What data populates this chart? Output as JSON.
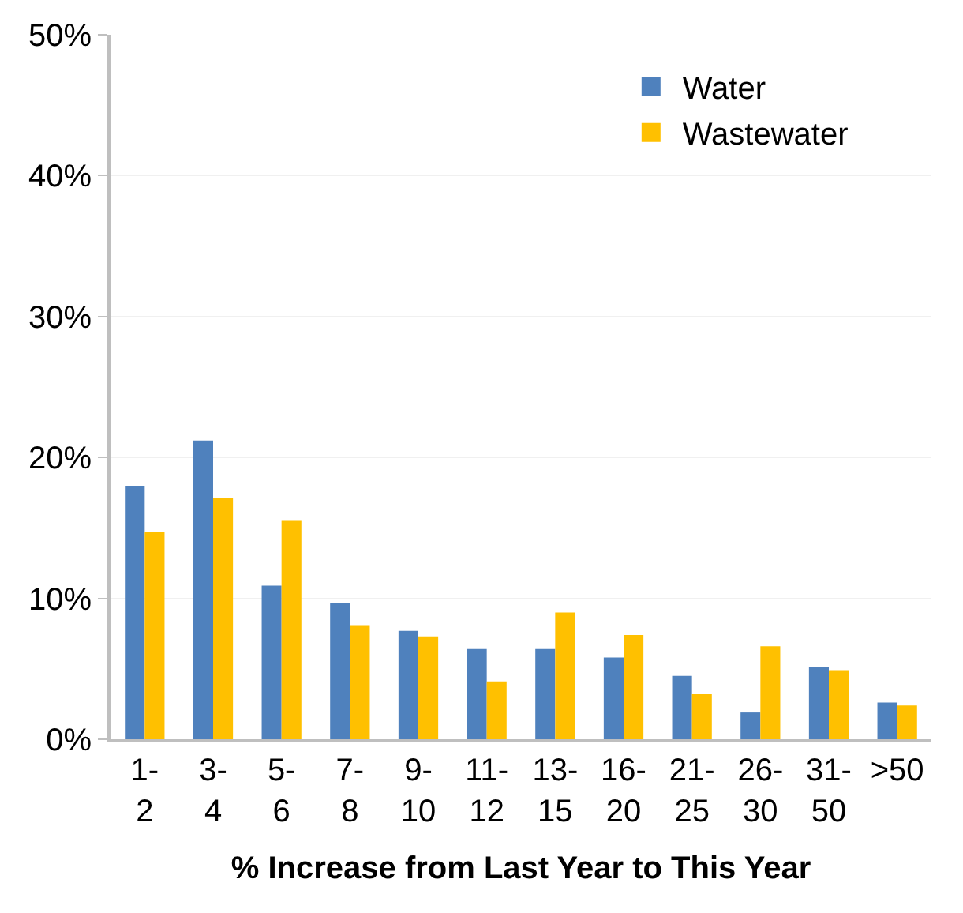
{
  "chart_data": {
    "type": "bar",
    "xlabel": "% Increase from Last Year to This Year",
    "categories": [
      "1-\n2",
      "3-\n4",
      "5-\n6",
      "7-\n8",
      "9-\n10",
      "11-\n12",
      "13-\n15",
      "16-\n20",
      "21-\n25",
      "26-\n30",
      "31-\n50",
      ">50"
    ],
    "series": [
      {
        "name": "Water",
        "color": "#4f81bd",
        "values": [
          18.0,
          21.2,
          10.9,
          9.7,
          7.7,
          6.4,
          6.4,
          5.8,
          4.5,
          1.9,
          5.1,
          2.6
        ]
      },
      {
        "name": "Wastewater",
        "color": "#ffc000",
        "values": [
          14.7,
          17.1,
          15.5,
          8.1,
          7.3,
          4.1,
          9.0,
          7.4,
          3.2,
          6.6,
          4.9,
          2.4
        ]
      }
    ],
    "ylim": [
      0,
      50
    ],
    "yticks": [
      {
        "value": 0,
        "label": "0%"
      },
      {
        "value": 10,
        "label": "10%"
      },
      {
        "value": 20,
        "label": "20%"
      },
      {
        "value": 30,
        "label": "30%"
      },
      {
        "value": 40,
        "label": "40%"
      },
      {
        "value": 50,
        "label": "50%"
      }
    ],
    "grid": "y",
    "legend": "top right"
  }
}
